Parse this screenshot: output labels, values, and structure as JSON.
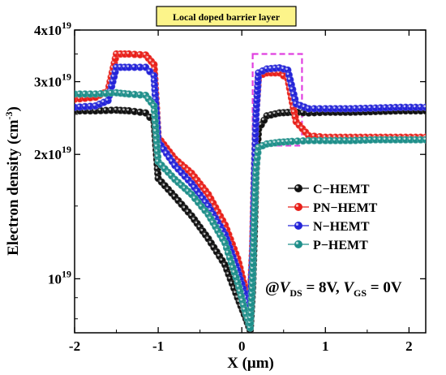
{
  "chart_data": {
    "type": "scatter",
    "banner": "Local doped barrier layer",
    "xlabel": "X (μm)",
    "ylabel": "Electron density (cm",
    "ylabel_sup": "-3",
    "ylabel_end": ")",
    "xlim": [
      -2,
      2.2
    ],
    "ylim": [
      7.4e+18,
      4e+19
    ],
    "yscale": "log",
    "x_ticks": [
      -2,
      -1,
      0,
      1,
      2
    ],
    "x_tick_labels": [
      "-2",
      "-1",
      "0",
      "1",
      "2"
    ],
    "y_ticks": [
      {
        "value": 1e+19,
        "mantissa": "10",
        "exp": "19"
      },
      {
        "value": 2e+19,
        "mantissa": "2x10",
        "exp": "19"
      },
      {
        "value": 3e+19,
        "mantissa": "3x10",
        "exp": "19"
      },
      {
        "value": 4e+19,
        "mantissa": "4x10",
        "exp": "19"
      }
    ],
    "annotation": {
      "prefix": "@",
      "v1": "V",
      "v1_sub": "DS",
      "v1_val": " = 8V, ",
      "v2": "V",
      "v2_sub": "GS",
      "v2_val": " = 0V"
    },
    "highlight_box": {
      "x0": 0.13,
      "x1": 0.72,
      "y0": 2.1e+19,
      "y1": 3.5e+19,
      "color": "#e040e0"
    },
    "legend_position": "center-right",
    "series": [
      {
        "name": "C−HEMT",
        "color": "#111111",
        "points": [
          [
            -2.0,
            2.55e+19
          ],
          [
            -1.75,
            2.55e+19
          ],
          [
            -1.5,
            2.56e+19
          ],
          [
            -1.35,
            2.55e+19
          ],
          [
            -1.15,
            2.52e+19
          ],
          [
            -1.05,
            2.4e+19
          ],
          [
            -1.0,
            1.75e+19
          ],
          [
            -0.8,
            1.58e+19
          ],
          [
            -0.6,
            1.42e+19
          ],
          [
            -0.4,
            1.25e+19
          ],
          [
            -0.2,
            1.08e+19
          ],
          [
            -0.05,
            9e+18
          ],
          [
            0.05,
            8e+18
          ],
          [
            0.1,
            7.5e+18
          ],
          [
            0.13,
            9.5e+18
          ],
          [
            0.15,
            1.3e+19
          ],
          [
            0.17,
            1.8e+19
          ],
          [
            0.2,
            2.3e+19
          ],
          [
            0.3,
            2.48e+19
          ],
          [
            0.45,
            2.52e+19
          ],
          [
            0.6,
            2.53e+19
          ],
          [
            0.8,
            2.52e+19
          ],
          [
            1.0,
            2.53e+19
          ],
          [
            1.3,
            2.53e+19
          ],
          [
            1.6,
            2.54e+19
          ],
          [
            1.9,
            2.55e+19
          ],
          [
            2.2,
            2.55e+19
          ]
        ]
      },
      {
        "name": "PN−HEMT",
        "color": "#e8201a",
        "points": [
          [
            -2.0,
            2.72e+19
          ],
          [
            -1.75,
            2.75e+19
          ],
          [
            -1.6,
            2.85e+19
          ],
          [
            -1.5,
            3.5e+19
          ],
          [
            -1.35,
            3.5e+19
          ],
          [
            -1.15,
            3.48e+19
          ],
          [
            -1.05,
            3.3e+19
          ],
          [
            -1.0,
            2.2e+19
          ],
          [
            -0.8,
            1.95e+19
          ],
          [
            -0.6,
            1.8e+19
          ],
          [
            -0.4,
            1.6e+19
          ],
          [
            -0.2,
            1.35e+19
          ],
          [
            -0.05,
            1.12e+19
          ],
          [
            0.05,
            9.3e+18
          ],
          [
            0.1,
            8.7e+18
          ],
          [
            0.13,
            1.2e+19
          ],
          [
            0.15,
            1.8e+19
          ],
          [
            0.17,
            2.5e+19
          ],
          [
            0.2,
            3.1e+19
          ],
          [
            0.3,
            3.15e+19
          ],
          [
            0.45,
            3.15e+19
          ],
          [
            0.55,
            3.05e+19
          ],
          [
            0.65,
            2.4e+19
          ],
          [
            0.8,
            2.22e+19
          ],
          [
            1.0,
            2.2e+19
          ],
          [
            1.3,
            2.2e+19
          ],
          [
            1.6,
            2.2e+19
          ],
          [
            1.9,
            2.2e+19
          ],
          [
            2.2,
            2.2e+19
          ]
        ]
      },
      {
        "name": "N−HEMT",
        "color": "#2424d8",
        "points": [
          [
            -2.0,
            2.6e+19
          ],
          [
            -1.75,
            2.62e+19
          ],
          [
            -1.6,
            2.7e+19
          ],
          [
            -1.5,
            3.25e+19
          ],
          [
            -1.35,
            3.25e+19
          ],
          [
            -1.15,
            3.25e+19
          ],
          [
            -1.05,
            3.1e+19
          ],
          [
            -1.0,
            2.15e+19
          ],
          [
            -0.8,
            1.88e+19
          ],
          [
            -0.6,
            1.7e+19
          ],
          [
            -0.4,
            1.5e+19
          ],
          [
            -0.2,
            1.28e+19
          ],
          [
            -0.05,
            1.05e+19
          ],
          [
            0.05,
            9e+18
          ],
          [
            0.1,
            8.4e+18
          ],
          [
            0.13,
            1.15e+19
          ],
          [
            0.15,
            1.75e+19
          ],
          [
            0.17,
            2.5e+19
          ],
          [
            0.2,
            3.15e+19
          ],
          [
            0.3,
            3.22e+19
          ],
          [
            0.45,
            3.24e+19
          ],
          [
            0.55,
            3.2e+19
          ],
          [
            0.65,
            2.65e+19
          ],
          [
            0.8,
            2.58e+19
          ],
          [
            1.0,
            2.58e+19
          ],
          [
            1.3,
            2.58e+19
          ],
          [
            1.6,
            2.59e+19
          ],
          [
            1.9,
            2.6e+19
          ],
          [
            2.2,
            2.6e+19
          ]
        ]
      },
      {
        "name": "P−HEMT",
        "color": "#1f8f8a",
        "points": [
          [
            -2.0,
            2.8e+19
          ],
          [
            -1.75,
            2.8e+19
          ],
          [
            -1.5,
            2.82e+19
          ],
          [
            -1.35,
            2.8e+19
          ],
          [
            -1.15,
            2.78e+19
          ],
          [
            -1.05,
            2.62e+19
          ],
          [
            -1.0,
            1.92e+19
          ],
          [
            -0.8,
            1.74e+19
          ],
          [
            -0.6,
            1.6e+19
          ],
          [
            -0.4,
            1.43e+19
          ],
          [
            -0.2,
            1.22e+19
          ],
          [
            -0.05,
            9.8e+18
          ],
          [
            0.05,
            8.2e+18
          ],
          [
            0.1,
            7.6e+18
          ],
          [
            0.13,
            1e+19
          ],
          [
            0.15,
            1.4e+19
          ],
          [
            0.17,
            1.85e+19
          ],
          [
            0.2,
            2.08e+19
          ],
          [
            0.3,
            2.12e+19
          ],
          [
            0.45,
            2.14e+19
          ],
          [
            0.6,
            2.15e+19
          ],
          [
            0.8,
            2.16e+19
          ],
          [
            1.0,
            2.16e+19
          ],
          [
            1.3,
            2.16e+19
          ],
          [
            1.6,
            2.17e+19
          ],
          [
            1.9,
            2.17e+19
          ],
          [
            2.2,
            2.17e+19
          ]
        ]
      }
    ]
  }
}
